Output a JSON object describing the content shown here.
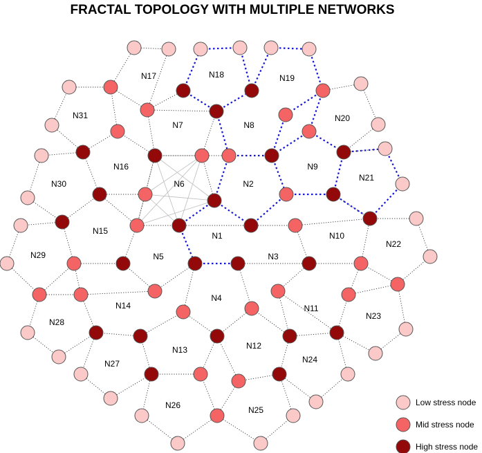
{
  "title": "FRACTAL TOPOLOGY WITH MULTIPLE NETWORKS",
  "colors": {
    "low": "#fcc9c9",
    "mid": "#f46464",
    "high": "#930909",
    "blue_edge": "#1515d6"
  },
  "legend": [
    {
      "label": "Low stress node",
      "level": "low"
    },
    {
      "label": "Mid stress node",
      "level": "mid"
    },
    {
      "label": "High stress node",
      "level": "high"
    }
  ],
  "faces": [
    "N1",
    "N2",
    "N3",
    "N4",
    "N5",
    "N6",
    "N7",
    "N8",
    "N9",
    "N10",
    "N11",
    "N12",
    "N13",
    "N14",
    "N15",
    "N16",
    "N17",
    "N18",
    "N19",
    "N20",
    "N21",
    "N22",
    "N23",
    "N24",
    "N25",
    "N26",
    "N27",
    "N28",
    "N29",
    "N30",
    "N31"
  ]
}
